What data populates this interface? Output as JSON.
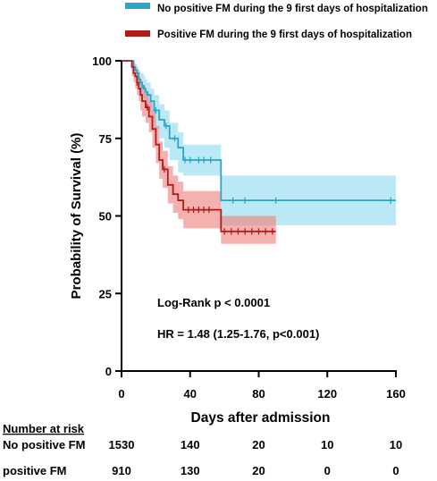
{
  "chart_data": {
    "type": "line",
    "subtype": "kaplan-meier",
    "title": "",
    "xlabel": "Days after admission",
    "ylabel": "Probability of Survival (%)",
    "xlim": [
      0,
      160
    ],
    "ylim": [
      0,
      100
    ],
    "xticks": [
      0,
      40,
      80,
      120,
      160
    ],
    "yticks": [
      0,
      25,
      50,
      75,
      100
    ],
    "grid": false,
    "legend_position": "top",
    "series": [
      {
        "name": "No positive FM during the 9 first days of hospitalization",
        "color": "#2aa6c6",
        "band_color": "#8fdcef",
        "x": [
          0,
          5,
          7,
          8,
          9,
          10,
          11,
          12,
          13,
          14,
          15,
          17,
          19,
          22,
          25,
          28,
          33,
          36,
          40,
          58,
          160
        ],
        "y": [
          100,
          100,
          98,
          97,
          96,
          94,
          93,
          92,
          91,
          90,
          89,
          87,
          84,
          81,
          79,
          75,
          72,
          68,
          68,
          55,
          55
        ],
        "lower": [
          100,
          100,
          96,
          95,
          93,
          91,
          89,
          88,
          86,
          85,
          84,
          82,
          78,
          75,
          72,
          68,
          64,
          63,
          63,
          47,
          47
        ],
        "upper": [
          100,
          100,
          100,
          99,
          98,
          97,
          96,
          96,
          95,
          94,
          93,
          91,
          89,
          86,
          84,
          80,
          77,
          73,
          73,
          63,
          63
        ],
        "censored_x": [
          12,
          20,
          26,
          31,
          37,
          40,
          45,
          48,
          52,
          65,
          72,
          90,
          157
        ]
      },
      {
        "name": "Positive FM during the 9 first days of hospitalization",
        "color": "#b01c1c",
        "band_color": "#ef8080",
        "x": [
          0,
          4,
          6,
          7,
          8,
          9,
          10,
          11,
          12,
          14,
          16,
          18,
          20,
          22,
          24,
          27,
          30,
          33,
          36,
          42,
          58,
          90
        ],
        "y": [
          100,
          100,
          98,
          96,
          95,
          93,
          91,
          89,
          87,
          85,
          82,
          78,
          73,
          68,
          65,
          60,
          57,
          55,
          52,
          52,
          45,
          45
        ],
        "lower": [
          100,
          100,
          95,
          93,
          91,
          89,
          87,
          84,
          82,
          80,
          77,
          72,
          67,
          62,
          59,
          54,
          51,
          49,
          46,
          46,
          41,
          41
        ],
        "upper": [
          100,
          100,
          100,
          99,
          98,
          97,
          95,
          94,
          92,
          90,
          87,
          84,
          79,
          74,
          71,
          66,
          63,
          61,
          58,
          58,
          50,
          50
        ],
        "censored_x": [
          9,
          15,
          25,
          39,
          42,
          45,
          48,
          51,
          60,
          64,
          68,
          72,
          76,
          80,
          84,
          88
        ]
      }
    ],
    "annotations": [
      "Log-Rank p < 0.0001",
      "HR = 1.48 (1.25-1.76, p<0.001)"
    ],
    "risk_table": {
      "title": "Number at risk",
      "columns_x": [
        0,
        40,
        80,
        120,
        160
      ],
      "rows": [
        {
          "label": "No positive FM",
          "values": [
            "1530",
            "140",
            "20",
            "10",
            "10"
          ]
        },
        {
          "label": "positive FM",
          "values": [
            "910",
            "130",
            "20",
            "0",
            "0"
          ]
        }
      ]
    }
  }
}
